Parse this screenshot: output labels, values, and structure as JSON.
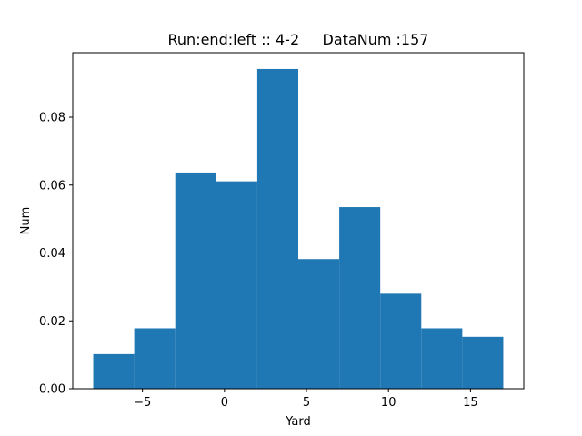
{
  "chart_data": {
    "type": "bar",
    "title": "Run:end:left :: 4-2     DataNum :157",
    "xlabel": "Yard",
    "ylabel": "Num",
    "xlim": [
      -9.25,
      18.25
    ],
    "ylim": [
      0,
      0.099
    ],
    "xticks": [
      -5,
      0,
      5,
      10,
      15
    ],
    "xtick_labels": [
      "−5",
      "0",
      "5",
      "10",
      "15"
    ],
    "yticks": [
      0,
      0.02,
      0.04,
      0.06,
      0.08
    ],
    "ytick_labels": [
      "0.00",
      "0.02",
      "0.04",
      "0.06",
      "0.08"
    ],
    "bin_edges": [
      -8,
      -5.5,
      -3,
      -0.5,
      2,
      4.5,
      7,
      9.5,
      12,
      14.5,
      17
    ],
    "values": [
      0.0102,
      0.0178,
      0.0637,
      0.0611,
      0.0942,
      0.0382,
      0.0535,
      0.028,
      0.0178,
      0.0153
    ],
    "bar_color": "#1f77b4",
    "grid": false,
    "legend": "none"
  }
}
